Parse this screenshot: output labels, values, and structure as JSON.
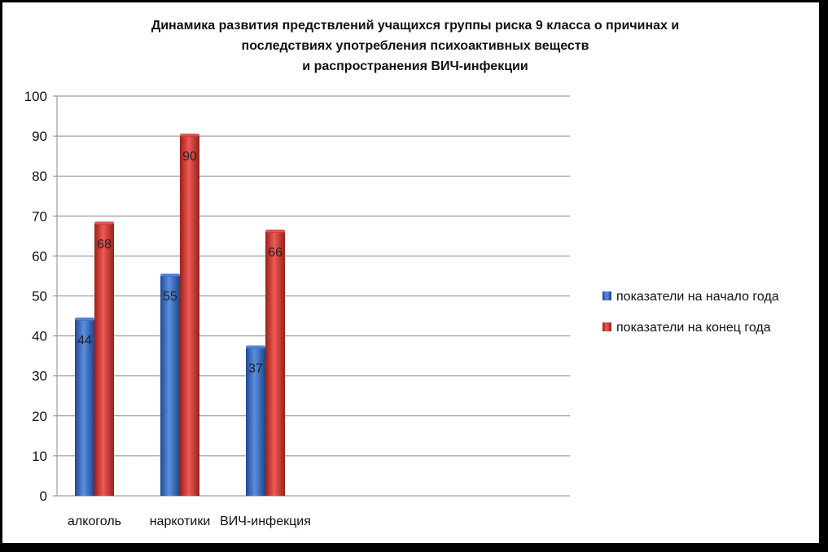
{
  "chart_data": {
    "type": "bar",
    "title": [
      "Динамика развития предствлений учащихся группы риска 9 класса о причинах и",
      "последствиях употребления психоактивных веществ",
      "и распространения ВИЧ-инфекции"
    ],
    "categories": [
      "алкоголь",
      "наркотики",
      "ВИЧ-инфекция"
    ],
    "series": [
      {
        "name": "показатели на начало года",
        "values": [
          44,
          55,
          37
        ],
        "color": "#3a6fc4"
      },
      {
        "name": "показатели на конец года",
        "values": [
          68,
          90,
          66
        ],
        "color": "#d23a35"
      }
    ],
    "ylim": [
      0,
      100
    ],
    "yticks": [
      0,
      10,
      20,
      30,
      40,
      50,
      60,
      70,
      80,
      90,
      100
    ],
    "grid": true,
    "legend_position": "right"
  }
}
